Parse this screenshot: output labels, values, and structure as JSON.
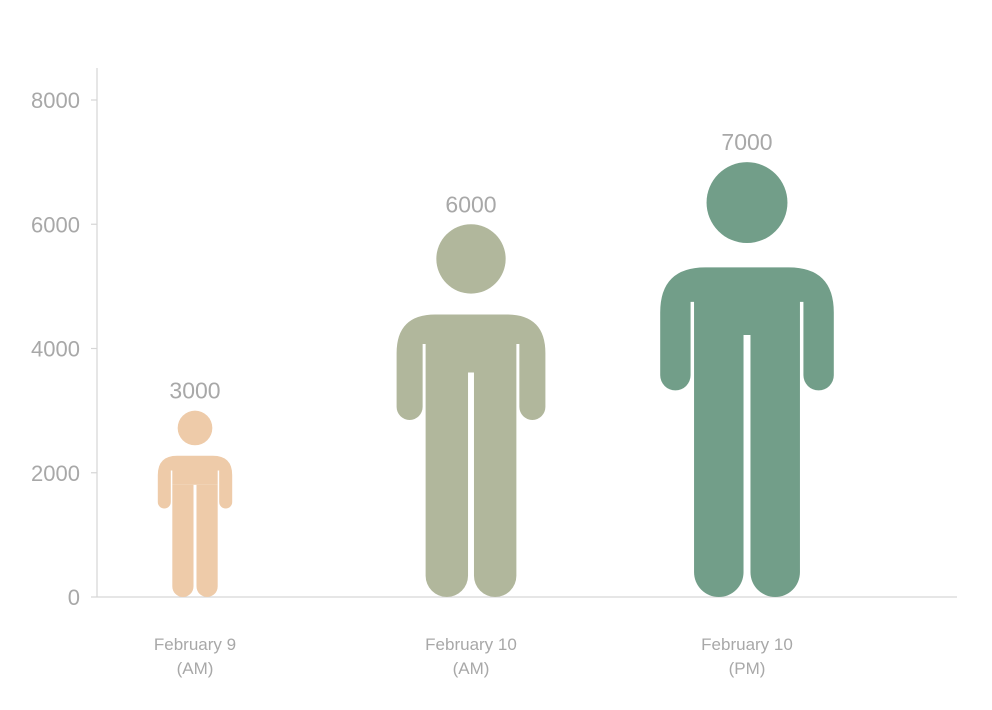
{
  "chart_data": {
    "type": "bar",
    "mark": "person-pictogram",
    "categories": [
      [
        "February 9",
        "(AM)"
      ],
      [
        "February 10",
        "(AM)"
      ],
      [
        "February 10",
        "(PM)"
      ]
    ],
    "values": [
      3000,
      6000,
      7000
    ],
    "value_labels": [
      "3000",
      "6000",
      "7000"
    ],
    "colors": [
      "#eecba9",
      "#b1b79c",
      "#729e89"
    ],
    "yticks": [
      "0",
      "2000",
      "4000",
      "6000",
      "8000"
    ],
    "ylim": [
      0,
      8000
    ],
    "grid": false,
    "legend": "none"
  }
}
